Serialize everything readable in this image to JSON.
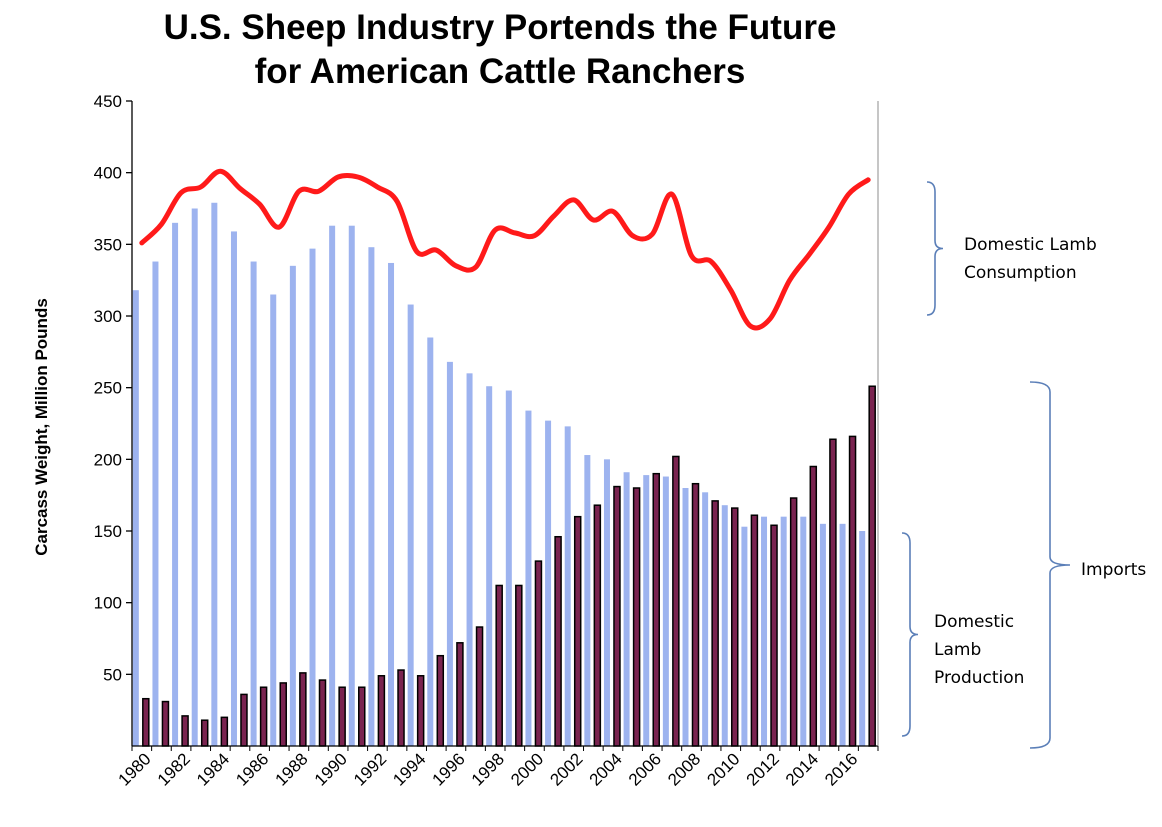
{
  "chart_data": {
    "type": "bar",
    "title_line1": "U.S. Sheep Industry Portends the Future",
    "title_line2": "for American Cattle Ranchers",
    "ylabel": "Carcass Weight, Million  Pounds",
    "xlabel": "",
    "ylim": [
      0,
      450
    ],
    "yticks": [
      50,
      100,
      150,
      200,
      250,
      300,
      350,
      400,
      450
    ],
    "grid": false,
    "categories": [
      "1980",
      "1981",
      "1982",
      "1983",
      "1984",
      "1985",
      "1986",
      "1987",
      "1988",
      "1989",
      "1990",
      "1991",
      "1992",
      "1993",
      "1994",
      "1995",
      "1996",
      "1997",
      "1998",
      "1999",
      "2000",
      "2001",
      "2002",
      "2003",
      "2004",
      "2005",
      "2006",
      "2007",
      "2008",
      "2009",
      "2010",
      "2011",
      "2012",
      "2013",
      "2014",
      "2015",
      "2016",
      "2017"
    ],
    "xtick_labels": [
      "1980",
      "1982",
      "1984",
      "1986",
      "1988",
      "1990",
      "1992",
      "1994",
      "1996",
      "1998",
      "2000",
      "2002",
      "2004",
      "2006",
      "2008",
      "2010",
      "2012",
      "2014",
      "2016"
    ],
    "series": [
      {
        "type": "bar",
        "color": "#9db3ef",
        "values": [
          318,
          338,
          365,
          375,
          379,
          359,
          338,
          315,
          335,
          347,
          363,
          363,
          348,
          337,
          308,
          285,
          268,
          260,
          251,
          248,
          234,
          227,
          223,
          203,
          200,
          191,
          189,
          188,
          180,
          177,
          168,
          153,
          160,
          160,
          160,
          155,
          155,
          150
        ]
      },
      {
        "type": "bar",
        "color": "#7a2450",
        "values": [
          33,
          31,
          21,
          18,
          20,
          36,
          41,
          44,
          51,
          46,
          41,
          41,
          49,
          53,
          49,
          63,
          72,
          83,
          112,
          112,
          129,
          146,
          160,
          168,
          181,
          180,
          190,
          202,
          183,
          171,
          166,
          161,
          154,
          173,
          195,
          214,
          216,
          251
        ]
      },
      {
        "type": "line",
        "color": "#ff1a1a",
        "values": [
          351,
          364,
          386,
          390,
          401,
          389,
          378,
          362,
          387,
          387,
          397,
          397,
          390,
          380,
          345,
          346,
          335,
          334,
          360,
          358,
          356,
          370,
          381,
          367,
          373,
          356,
          357,
          385,
          342,
          338,
          318,
          293,
          298,
          325,
          343,
          362,
          385,
          395
        ]
      }
    ],
    "annotations": {
      "consumption_line1": "Domestic Lamb",
      "consumption_line2": "Consumption",
      "production_line1": "Domestic",
      "production_line2": "Lamb",
      "production_line3": "Production",
      "imports": "Imports"
    },
    "colors": {
      "bracket": "#5b7fb8",
      "axis": "#000000"
    }
  }
}
